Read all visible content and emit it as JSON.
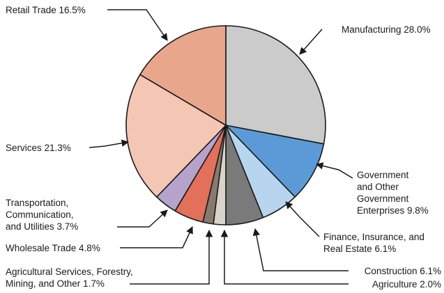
{
  "chart_data": {
    "type": "pie",
    "colors": {
      "manufacturing": "#cbcbcb",
      "government": "#5b9ad6",
      "finance": "#b8d5ef",
      "construction": "#7a7a7a",
      "agriculture": "#d8d4cc",
      "ag_services": "#8a7a6e",
      "wholesale": "#e2705a",
      "transportation": "#b6a3cc",
      "services": "#f4c7b5",
      "retail": "#e8a78c",
      "outline": "#1a1a1a"
    },
    "slices": [
      {
        "key": "manufacturing",
        "label": [
          "Manufacturing 28.0%"
        ],
        "value": 28.0
      },
      {
        "key": "government",
        "label": [
          "Government",
          "and Other",
          "Government",
          "Enterprises 9.8%"
        ],
        "value": 9.8
      },
      {
        "key": "finance",
        "label": [
          "Finance, Insurance, and",
          "Real Estate 6.1%"
        ],
        "value": 6.1
      },
      {
        "key": "construction",
        "label": [
          "Construction 6.1%"
        ],
        "value": 6.1
      },
      {
        "key": "agriculture",
        "label": [
          "Agriculture 2.0%"
        ],
        "value": 2.0
      },
      {
        "key": "ag_services",
        "label": [
          "Agricultural Services, Forestry,",
          "Mining, and Other 1.7%"
        ],
        "value": 1.7
      },
      {
        "key": "wholesale",
        "label": [
          "Wholesale Trade 4.8%"
        ],
        "value": 4.8
      },
      {
        "key": "transportation",
        "label": [
          "Transportation,",
          "Communication,",
          "and Utilities 3.7%"
        ],
        "value": 3.7
      },
      {
        "key": "services",
        "label": [
          "Services 21.3%"
        ],
        "value": 21.3
      },
      {
        "key": "retail",
        "label": [
          "Retail Trade 16.5%"
        ],
        "value": 16.5
      }
    ]
  }
}
